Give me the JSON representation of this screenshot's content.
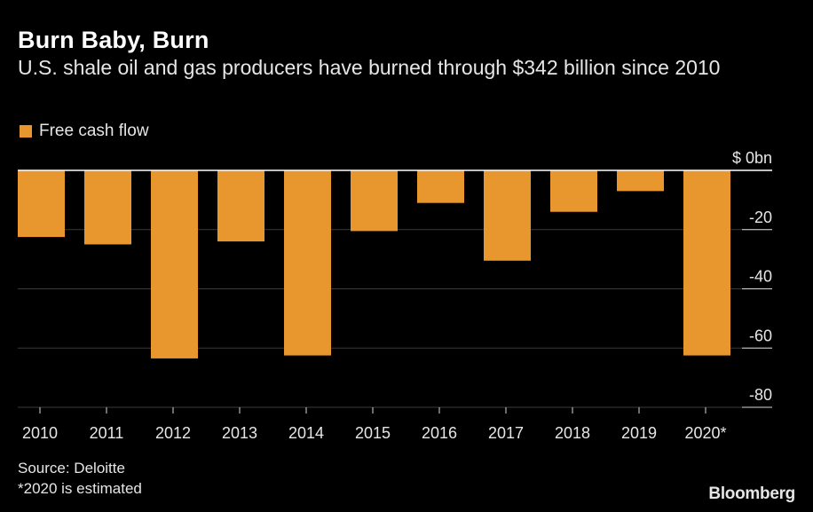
{
  "header": {
    "title": "Burn Baby, Burn",
    "subtitle": "U.S. shale oil and gas producers have burned through $342 billion since 2010"
  },
  "legend": {
    "label": "Free cash flow",
    "color": "#e8962e"
  },
  "chart_data": {
    "type": "bar",
    "title": "Burn Baby, Burn",
    "subtitle": "U.S. shale oil and gas producers have burned through $342 billion since 2010",
    "categories": [
      "2010",
      "2011",
      "2012",
      "2013",
      "2014",
      "2015",
      "2016",
      "2017",
      "2018",
      "2019",
      "2020*"
    ],
    "series": [
      {
        "name": "Free cash flow",
        "values": [
          -22.5,
          -25,
          -63.5,
          -24,
          -62.5,
          -20.5,
          -11,
          -30.5,
          -14,
          -7,
          -62.5
        ]
      }
    ],
    "y_ticks": [
      {
        "value": 0,
        "label": "$ 0bn"
      },
      {
        "value": -20,
        "label": "-20"
      },
      {
        "value": -40,
        "label": "-40"
      },
      {
        "value": -60,
        "label": "-60"
      },
      {
        "value": -80,
        "label": "-80"
      }
    ],
    "ylim": [
      -80,
      0
    ],
    "y_axis_position": "right",
    "bar_color": "#e8962e",
    "grid": true,
    "legend_position": "top-left"
  },
  "footer": {
    "source": "Source: Deloitte",
    "footnote": "*2020 is estimated",
    "logo": "Bloomberg"
  }
}
